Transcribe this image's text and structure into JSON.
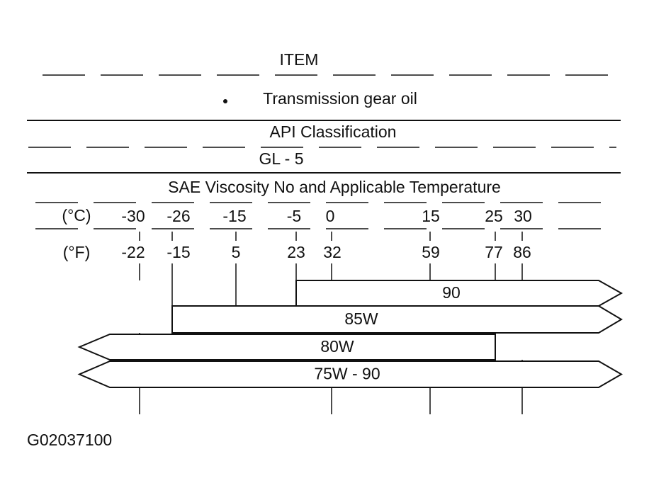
{
  "header": {
    "title": "ITEM",
    "item": "Transmission gear oil"
  },
  "classification": {
    "title": "API Classification",
    "value": "GL - 5"
  },
  "viscosity": {
    "title": "SAE Viscosity No and Applicable Temperature",
    "celsius_unit": "(°C)",
    "fahrenheit_unit": "(°F)",
    "celsius": [
      "-30",
      "-26",
      "-15",
      "-5",
      "0",
      "15",
      "25",
      "30"
    ],
    "fahrenheit": [
      "-22",
      "-15",
      "5",
      "23",
      "32",
      "59",
      "77",
      "86"
    ],
    "grades": [
      "90",
      "85W",
      "80W",
      "75W - 90"
    ]
  },
  "figure_id": "G02037100"
}
